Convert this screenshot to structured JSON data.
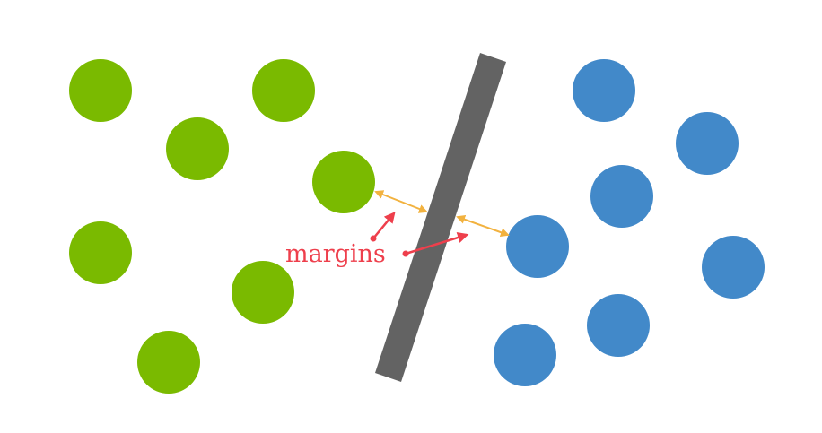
{
  "colors": {
    "class_a": "#7aba00",
    "class_b": "#4289c9",
    "separator": "#636363",
    "margin_arrow": "#f2b23f",
    "annotation": "#ee3f4c",
    "background": "#ffffff"
  },
  "annotation": {
    "label": "margins"
  }
}
